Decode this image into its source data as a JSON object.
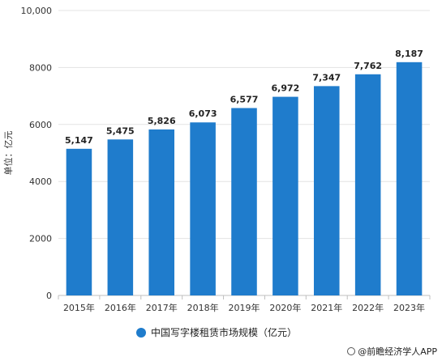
{
  "chart_data": {
    "type": "bar",
    "categories": [
      "2015年",
      "2016年",
      "2017年",
      "2018年",
      "2019年",
      "2020年",
      "2021年",
      "2022年",
      "2023年"
    ],
    "values": [
      5147,
      5475,
      5826,
      6073,
      6577,
      6972,
      7347,
      7762,
      8187
    ],
    "value_labels": [
      "5,147",
      "5,475",
      "5,826",
      "6,073",
      "6,577",
      "6,972",
      "7,347",
      "7,762",
      "8,187"
    ],
    "yticks": [
      "0",
      "2000",
      "4000",
      "6000",
      "8000",
      "10,000"
    ],
    "ylim": [
      0,
      10000
    ],
    "ylabel": "单位：亿元",
    "grid": true,
    "series_color": "#1f7ccc",
    "legend": {
      "label": "中国写字楼租赁市场规模（亿元）",
      "position": "bottom"
    }
  },
  "credit": "@前瞻经济学人APP"
}
